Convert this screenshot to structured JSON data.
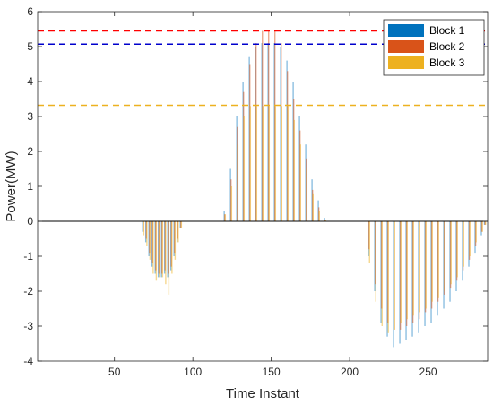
{
  "chart_data": {
    "type": "bar",
    "title": "",
    "xlabel": "Time Instant",
    "ylabel": "Power(MW)",
    "xlim": [
      1,
      288
    ],
    "ylim": [
      -4,
      6
    ],
    "xticks": [
      50,
      100,
      150,
      200,
      250
    ],
    "yticks": [
      -4,
      -3,
      -2,
      -1,
      0,
      1,
      2,
      3,
      4,
      5,
      6
    ],
    "grid": false,
    "legend": {
      "position": "top-right"
    },
    "series": [
      {
        "name": "Block 1",
        "color": "#0072BD",
        "segments": [
          {
            "x": [
              68,
              70,
              72,
              74,
              76,
              78,
              80,
              82,
              84,
              86,
              88,
              90,
              92
            ],
            "values": [
              -0.3,
              -0.6,
              -1.0,
              -1.3,
              -1.5,
              -1.6,
              -1.6,
              -1.5,
              -1.6,
              -1.4,
              -1.0,
              -0.6,
              -0.2
            ]
          },
          {
            "x": [
              120,
              124,
              128,
              132,
              136,
              140,
              144,
              148,
              152,
              156,
              160,
              164,
              168,
              172,
              176,
              180,
              184
            ],
            "values": [
              0.3,
              1.5,
              3.0,
              4.0,
              4.7,
              5.0,
              5.1,
              5.1,
              5.1,
              5.0,
              4.6,
              4.0,
              3.0,
              2.2,
              1.2,
              0.6,
              0.1
            ]
          },
          {
            "x": [
              212,
              216,
              220,
              224,
              228,
              232,
              236,
              240,
              244,
              248,
              252,
              256,
              260,
              264,
              268,
              272,
              276,
              280,
              284,
              286
            ],
            "values": [
              -1.0,
              -2.0,
              -2.9,
              -3.3,
              -3.6,
              -3.5,
              -3.4,
              -3.3,
              -3.2,
              -3.0,
              -2.9,
              -2.7,
              -2.5,
              -2.3,
              -2.0,
              -1.7,
              -1.3,
              -0.9,
              -0.4,
              -0.1
            ]
          }
        ]
      },
      {
        "name": "Block 2",
        "color": "#D95319",
        "segments": [
          {
            "x": [
              68,
              70,
              72,
              74,
              76,
              78,
              80,
              82,
              84,
              86,
              88,
              90,
              92
            ],
            "values": [
              -0.3,
              -0.5,
              -0.9,
              -1.2,
              -1.4,
              -1.5,
              -1.5,
              -1.4,
              -1.5,
              -1.3,
              -0.9,
              -0.5,
              -0.2
            ]
          },
          {
            "x": [
              120,
              124,
              128,
              132,
              136,
              140,
              144,
              148,
              152,
              156,
              160,
              164,
              168,
              172,
              176,
              180,
              184
            ],
            "values": [
              0.2,
              1.2,
              2.7,
              3.7,
              4.5,
              5.1,
              5.45,
              5.45,
              5.45,
              5.1,
              4.3,
              3.5,
              2.6,
              1.8,
              0.9,
              0.4,
              0.05
            ]
          },
          {
            "x": [
              212,
              216,
              220,
              224,
              228,
              232,
              236,
              240,
              244,
              248,
              252,
              256,
              260,
              264,
              268,
              272,
              276,
              280,
              284,
              286
            ],
            "values": [
              -0.8,
              -1.8,
              -2.5,
              -2.9,
              -3.1,
              -3.1,
              -3.0,
              -2.9,
              -2.8,
              -2.6,
              -2.5,
              -2.3,
              -2.1,
              -1.9,
              -1.7,
              -1.4,
              -1.1,
              -0.7,
              -0.3,
              -0.1
            ]
          }
        ]
      },
      {
        "name": "Block 3",
        "color": "#EDB120",
        "segments": [
          {
            "x": [
              68,
              70,
              72,
              74,
              76,
              78,
              80,
              82,
              84,
              86,
              88,
              90,
              92
            ],
            "values": [
              -0.4,
              -0.7,
              -1.1,
              -1.5,
              -1.7,
              -1.6,
              -1.6,
              -1.8,
              -2.1,
              -1.5,
              -1.1,
              -0.6,
              -0.2
            ]
          },
          {
            "x": [
              120,
              124,
              128,
              132,
              136,
              140,
              144,
              148,
              152,
              156,
              160,
              164,
              168,
              172,
              176,
              180,
              184
            ],
            "values": [
              0.2,
              1.0,
              2.2,
              3.0,
              3.3,
              3.3,
              3.3,
              3.3,
              3.3,
              3.3,
              3.3,
              2.9,
              2.2,
              1.5,
              0.8,
              0.3,
              0.05
            ]
          },
          {
            "x": [
              212,
              216,
              220,
              224,
              228,
              232,
              236,
              240,
              244,
              248,
              252,
              256,
              260,
              264,
              268,
              272,
              276,
              280,
              284,
              286
            ],
            "values": [
              -1.2,
              -2.3,
              -3.0,
              -3.2,
              -3.1,
              -2.9,
              -2.8,
              -2.7,
              -2.6,
              -2.5,
              -2.3,
              -2.2,
              -2.0,
              -1.8,
              -1.6,
              -1.3,
              -1.0,
              -0.6,
              -0.3,
              -0.1
            ]
          }
        ]
      }
    ],
    "reference_lines": [
      {
        "y": 5.45,
        "color": "#FF0000",
        "style": "dashed"
      },
      {
        "y": 5.07,
        "color": "#0000CC",
        "style": "dashed"
      },
      {
        "y": 3.32,
        "color": "#EDB120",
        "style": "dashed"
      }
    ]
  }
}
